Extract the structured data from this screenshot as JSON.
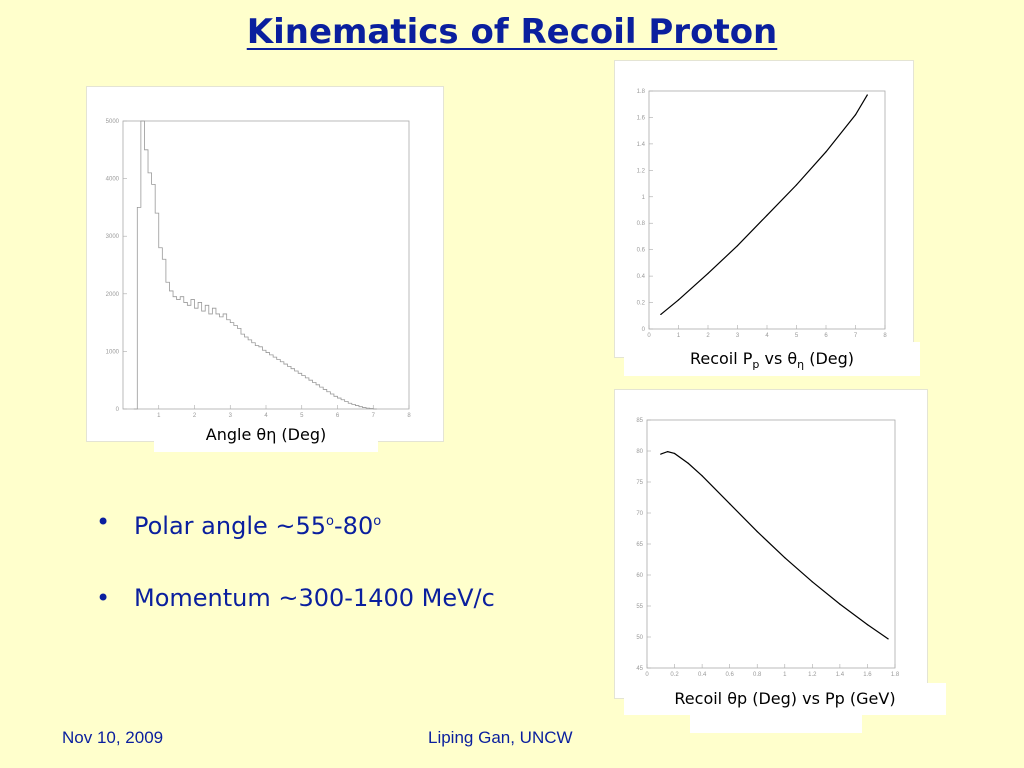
{
  "title": "Kinematics of Recoil Proton",
  "bullets": [
    {
      "pre": "Polar angle ~55",
      "sup1": "o",
      "mid": "-80",
      "sup2": "o"
    },
    {
      "text": "Momentum ~300-1400 MeV/c"
    }
  ],
  "footer": {
    "date": "Nov 10, 2009",
    "author": "Liping Gan, UNCW"
  },
  "chart_data": [
    {
      "type": "histogram",
      "caption": "Angle θη (Deg)",
      "xlim": [
        0,
        8
      ],
      "ylim": [
        0,
        5000
      ],
      "xticks": [
        "1",
        "2",
        "3",
        "4",
        "5",
        "6",
        "7",
        "8"
      ],
      "yticks": [
        "0",
        "1000",
        "2000",
        "3000",
        "4000",
        "5000"
      ],
      "bin_width": 0.1,
      "x_start": 0.3,
      "values": [
        0,
        3500,
        5000,
        4500,
        4100,
        3900,
        3400,
        2800,
        2600,
        2200,
        2050,
        1950,
        1900,
        1950,
        1850,
        1800,
        1900,
        1750,
        1850,
        1700,
        1800,
        1650,
        1750,
        1650,
        1600,
        1650,
        1550,
        1500,
        1450,
        1400,
        1300,
        1250,
        1200,
        1150,
        1100,
        1080,
        1020,
        980,
        940,
        900,
        860,
        820,
        780,
        740,
        700,
        660,
        620,
        580,
        540,
        500,
        460,
        420,
        380,
        340,
        300,
        260,
        220,
        190,
        160,
        130,
        100,
        80,
        60,
        40,
        25,
        15,
        8,
        0
      ]
    },
    {
      "type": "line",
      "caption": {
        "pre": "Recoil P",
        "sub1": "p",
        "mid": " vs θ",
        "sub2": "η",
        "post": " (Deg)"
      },
      "xlim": [
        0,
        8
      ],
      "ylim": [
        0,
        1.8
      ],
      "xticks": [
        "0",
        "1",
        "2",
        "3",
        "4",
        "5",
        "6",
        "7",
        "8"
      ],
      "yticks": [
        "0",
        "0.2",
        "0.4",
        "0.6",
        "0.8",
        "1",
        "1.2",
        "1.4",
        "1.6",
        "1.8"
      ],
      "x": [
        0.4,
        1,
        2,
        3,
        4,
        5,
        6,
        7,
        7.4
      ],
      "y": [
        0.11,
        0.22,
        0.42,
        0.63,
        0.86,
        1.09,
        1.34,
        1.62,
        1.77
      ]
    },
    {
      "type": "line",
      "caption": "Recoil θp (Deg) vs Pp (GeV)",
      "xlim": [
        0,
        1.8
      ],
      "ylim": [
        45,
        85
      ],
      "xticks": [
        "0",
        "0.2",
        "0.4",
        "0.6",
        "0.8",
        "1",
        "1.2",
        "1.4",
        "1.6",
        "1.8"
      ],
      "yticks": [
        "45",
        "50",
        "55",
        "60",
        "65",
        "70",
        "75",
        "80",
        "85"
      ],
      "x": [
        0.1,
        0.15,
        0.2,
        0.3,
        0.4,
        0.6,
        0.8,
        1.0,
        1.2,
        1.4,
        1.6,
        1.75
      ],
      "y": [
        79.5,
        79.9,
        79.6,
        78.0,
        76.0,
        71.5,
        67.0,
        62.8,
        58.9,
        55.3,
        52.0,
        49.7
      ]
    }
  ]
}
